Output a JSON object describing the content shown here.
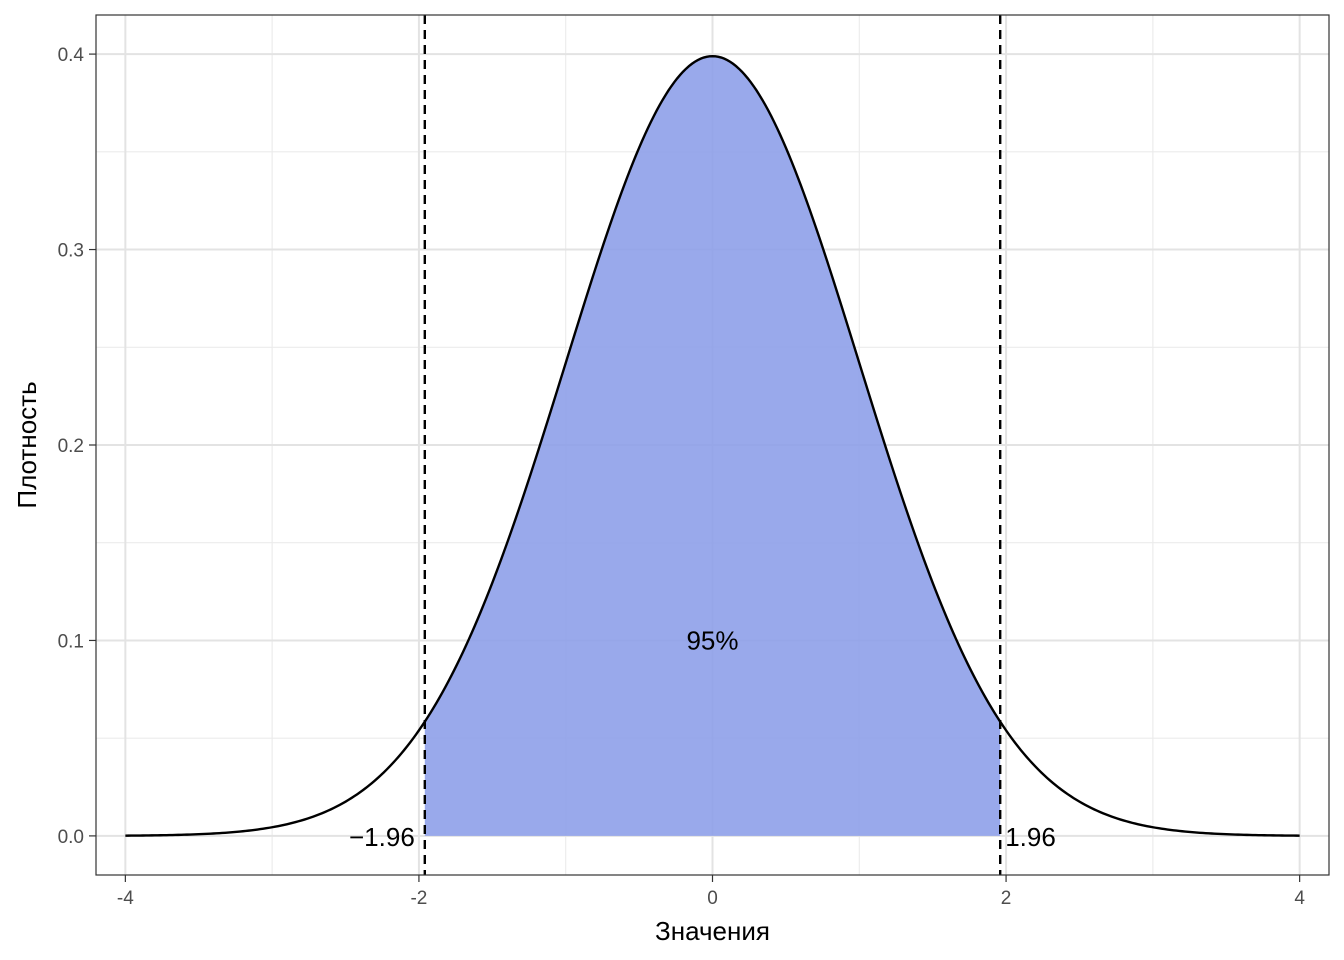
{
  "chart_data": {
    "type": "area",
    "title": "",
    "xlabel": "Значения",
    "ylabel": "Плотность",
    "xlim": [
      -4.2,
      4.2
    ],
    "ylim": [
      -0.02,
      0.42
    ],
    "x_ticks": [
      {
        "value": -4,
        "label": "-4"
      },
      {
        "value": -2,
        "label": "-2"
      },
      {
        "value": 0,
        "label": "0"
      },
      {
        "value": 2,
        "label": "2"
      },
      {
        "value": 4,
        "label": "4"
      }
    ],
    "y_ticks": [
      {
        "value": 0.0,
        "label": "0.0"
      },
      {
        "value": 0.1,
        "label": "0.1"
      },
      {
        "value": 0.2,
        "label": "0.2"
      },
      {
        "value": 0.3,
        "label": "0.3"
      },
      {
        "value": 0.4,
        "label": "0.4"
      }
    ],
    "curve": {
      "distribution": "standard normal density",
      "x": [
        -4.0,
        -3.5,
        -3.0,
        -2.5,
        -2.0,
        -1.96,
        -1.5,
        -1.0,
        -0.5,
        0.0,
        0.5,
        1.0,
        1.5,
        1.96,
        2.0,
        2.5,
        3.0,
        3.5,
        4.0
      ],
      "y": [
        0.0001,
        0.0009,
        0.0044,
        0.0175,
        0.054,
        0.0584,
        0.1295,
        0.242,
        0.3521,
        0.3989,
        0.3521,
        0.242,
        0.1295,
        0.0584,
        0.054,
        0.0175,
        0.0044,
        0.0009,
        0.0001
      ],
      "color": "#000000"
    },
    "shaded_region": {
      "from": -1.96,
      "to": 1.96,
      "color": "#8b9de8"
    },
    "vlines": [
      {
        "x": -1.96,
        "style": "dashed"
      },
      {
        "x": 1.96,
        "style": "dashed"
      }
    ],
    "annotations": [
      {
        "text": "95%",
        "x": 0,
        "y": 0.1
      },
      {
        "text": "−1.96",
        "x": -1.96,
        "y": 0,
        "side": "left"
      },
      {
        "text": "1.96",
        "x": 1.96,
        "y": 0,
        "side": "right"
      }
    ],
    "grid": true,
    "legend": "none"
  }
}
